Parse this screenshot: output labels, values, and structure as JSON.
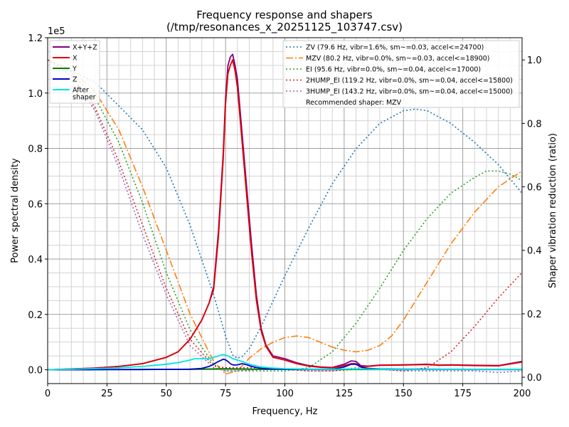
{
  "chart_data": {
    "type": "line",
    "title_line1": "Frequency response and shapers",
    "title_line2": "(/tmp/resonances_x_20251125_103747.csv)",
    "xlabel": "Frequency, Hz",
    "ylabel_left": "Power spectral density",
    "ylabel_right": "Shaper vibration reduction (ratio)",
    "left_scale_label": "1e5",
    "xlim": [
      0,
      200
    ],
    "ylim_left": [
      -0.05,
      1.2
    ],
    "ylim_right": [
      -0.02,
      1.07
    ],
    "x_ticks": [
      0,
      25,
      50,
      75,
      100,
      125,
      150,
      175,
      200
    ],
    "y_ticks_left": [
      0.0,
      0.2,
      0.4,
      0.6,
      0.8,
      1.0,
      1.2
    ],
    "y_tick_labels_left": [
      "0.0",
      "0.2",
      "0.4",
      "0.6",
      "0.8",
      "1.0",
      "1.2"
    ],
    "y_ticks_right": [
      0.0,
      0.2,
      0.4,
      0.6,
      0.8,
      1.0
    ],
    "y_tick_labels_right": [
      "0.0",
      "0.2",
      "0.4",
      "0.6",
      "0.8",
      "1.0"
    ],
    "grid": true,
    "psd_series": [
      {
        "name": "X+Y+Z",
        "color": "#800080",
        "x": [
          0,
          10,
          20,
          30,
          40,
          50,
          55,
          60,
          65,
          68,
          70,
          72,
          74,
          75,
          76,
          77,
          78,
          79,
          80,
          82,
          84,
          86,
          88,
          90,
          92,
          95,
          100,
          105,
          110,
          115,
          120,
          125,
          128,
          130,
          132,
          135,
          140,
          150,
          160,
          165,
          170,
          180,
          190,
          200
        ],
        "y": [
          0,
          0.003,
          0.006,
          0.012,
          0.022,
          0.045,
          0.065,
          0.11,
          0.18,
          0.24,
          0.3,
          0.5,
          0.78,
          0.98,
          1.1,
          1.13,
          1.14,
          1.1,
          1.05,
          0.85,
          0.65,
          0.45,
          0.27,
          0.15,
          0.09,
          0.05,
          0.04,
          0.025,
          0.015,
          0.01,
          0.008,
          0.02,
          0.032,
          0.03,
          0.015,
          0.013,
          0.017,
          0.018,
          0.02,
          0.017,
          0.018,
          0.016,
          0.015,
          0.03
        ]
      },
      {
        "name": "X",
        "color": "#dd0000",
        "x": [
          0,
          10,
          20,
          30,
          40,
          50,
          55,
          60,
          65,
          68,
          70,
          72,
          74,
          75,
          76,
          77,
          78,
          79,
          80,
          82,
          84,
          86,
          88,
          90,
          92,
          95,
          100,
          105,
          110,
          115,
          120,
          125,
          128,
          130,
          132,
          135,
          140,
          150,
          160,
          165,
          170,
          180,
          190,
          200
        ],
        "y": [
          0,
          0.003,
          0.006,
          0.012,
          0.022,
          0.045,
          0.065,
          0.11,
          0.18,
          0.24,
          0.29,
          0.48,
          0.76,
          0.96,
          1.07,
          1.1,
          1.12,
          1.08,
          1.02,
          0.82,
          0.62,
          0.42,
          0.25,
          0.14,
          0.085,
          0.045,
          0.035,
          0.022,
          0.013,
          0.009,
          0.007,
          0.015,
          0.022,
          0.022,
          0.012,
          0.012,
          0.016,
          0.017,
          0.019,
          0.016,
          0.017,
          0.015,
          0.014,
          0.028
        ]
      },
      {
        "name": "Y",
        "color": "#008000",
        "x": [
          0,
          20,
          40,
          60,
          70,
          75,
          80,
          90,
          100,
          120,
          140,
          160,
          180,
          200
        ],
        "y": [
          0,
          0.0005,
          0.001,
          0.002,
          0.003,
          0.004,
          0.003,
          0.002,
          0.002,
          0.001,
          0.001,
          0.001,
          0.001,
          0.001
        ]
      },
      {
        "name": "Z",
        "color": "#0000cc",
        "x": [
          0,
          20,
          40,
          60,
          65,
          68,
          70,
          72,
          74,
          75,
          76,
          77,
          78,
          79,
          80,
          82,
          84,
          86,
          88,
          90,
          95,
          100,
          110,
          120,
          125,
          128,
          130,
          132,
          135,
          140,
          150,
          160,
          180,
          200
        ],
        "y": [
          0,
          0.0005,
          0.001,
          0.002,
          0.005,
          0.012,
          0.02,
          0.03,
          0.038,
          0.036,
          0.03,
          0.022,
          0.018,
          0.017,
          0.018,
          0.022,
          0.018,
          0.012,
          0.008,
          0.005,
          0.003,
          0.002,
          0.002,
          0.002,
          0.01,
          0.02,
          0.02,
          0.01,
          0.005,
          0.003,
          0.002,
          0.002,
          0.001,
          0.001
        ]
      },
      {
        "name": "After\nshaper",
        "color": "#00e5e5",
        "x": [
          0,
          10,
          20,
          30,
          40,
          50,
          55,
          60,
          62,
          65,
          68,
          70,
          72,
          74,
          76,
          78,
          80,
          82,
          85,
          90,
          95,
          100,
          110,
          120,
          130,
          140,
          150,
          160,
          180,
          200
        ],
        "y": [
          0,
          0.002,
          0.004,
          0.007,
          0.012,
          0.02,
          0.026,
          0.035,
          0.04,
          0.04,
          0.04,
          0.045,
          0.05,
          0.055,
          0.05,
          0.04,
          0.035,
          0.03,
          0.02,
          0.01,
          0.006,
          0.004,
          0.002,
          0.002,
          0.003,
          0.002,
          0.001,
          0.001,
          0.001,
          0.001
        ]
      }
    ],
    "shaper_series": [
      {
        "name": "ZV (79.6 Hz, vibr=1.6%, sm~=0.03, accel<=24700)",
        "color": "#1f77b4",
        "style": "dotted",
        "x": [
          0,
          20,
          40,
          50,
          60,
          70,
          75,
          78,
          80,
          82,
          85,
          90,
          100,
          110,
          120,
          130,
          140,
          150,
          155,
          160,
          170,
          180,
          190,
          200
        ],
        "y": [
          1.0,
          0.93,
          0.78,
          0.66,
          0.48,
          0.26,
          0.13,
          0.07,
          0.06,
          0.065,
          0.09,
          0.16,
          0.32,
          0.47,
          0.61,
          0.72,
          0.8,
          0.84,
          0.845,
          0.84,
          0.8,
          0.74,
          0.67,
          0.58
        ]
      },
      {
        "name": "MZV (80.2 Hz, vibr=0.0%, sm~=0.03, accel<=18900)",
        "color": "#ff7f0e",
        "style": "dashdot",
        "x": [
          0,
          10,
          20,
          30,
          40,
          50,
          60,
          70,
          75,
          80,
          85,
          90,
          95,
          100,
          105,
          110,
          115,
          120,
          125,
          130,
          135,
          140,
          145,
          150,
          160,
          170,
          180,
          190,
          200
        ],
        "y": [
          1.0,
          0.97,
          0.9,
          0.78,
          0.6,
          0.4,
          0.2,
          0.05,
          0.01,
          0.02,
          0.06,
          0.09,
          0.11,
          0.125,
          0.13,
          0.125,
          0.11,
          0.095,
          0.085,
          0.08,
          0.085,
          0.1,
          0.13,
          0.18,
          0.3,
          0.42,
          0.52,
          0.6,
          0.65
        ]
      },
      {
        "name": "EI (95.6 Hz, vibr=0.0%, sm~=0.04, accel<=17000)",
        "color": "#2ca02c",
        "style": "dotted",
        "x": [
          0,
          10,
          20,
          30,
          40,
          50,
          60,
          70,
          75,
          80,
          90,
          100,
          110,
          120,
          130,
          140,
          150,
          160,
          170,
          180,
          185,
          190,
          195,
          200
        ],
        "y": [
          1.0,
          0.96,
          0.88,
          0.74,
          0.55,
          0.33,
          0.15,
          0.04,
          0.02,
          0.02,
          0.02,
          0.02,
          0.03,
          0.08,
          0.17,
          0.28,
          0.4,
          0.5,
          0.58,
          0.63,
          0.65,
          0.65,
          0.64,
          0.62
        ]
      },
      {
        "name": "2HUMP_EI (119.2 Hz, vibr=0.0%, sm~=0.04, accel<=15800)",
        "color": "#d62728",
        "style": "dotted",
        "x": [
          0,
          10,
          20,
          30,
          40,
          50,
          60,
          70,
          75,
          80,
          90,
          100,
          110,
          120,
          130,
          140,
          150,
          160,
          170,
          180,
          190,
          200
        ],
        "y": [
          1.0,
          0.95,
          0.85,
          0.68,
          0.48,
          0.28,
          0.12,
          0.035,
          0.03,
          0.03,
          0.03,
          0.025,
          0.02,
          0.02,
          0.025,
          0.025,
          0.02,
          0.03,
          0.08,
          0.16,
          0.25,
          0.33
        ]
      },
      {
        "name": "3HUMP_EI (143.2 Hz, vibr=0.0%, sm~=0.04, accel<=15000)",
        "color": "#9467bd",
        "style": "dotted",
        "x": [
          0,
          10,
          20,
          30,
          40,
          50,
          60,
          70,
          75,
          80,
          90,
          100,
          110,
          120,
          130,
          140,
          150,
          160,
          170,
          180,
          190,
          200
        ],
        "y": [
          1.0,
          0.95,
          0.84,
          0.66,
          0.45,
          0.26,
          0.1,
          0.03,
          0.02,
          0.02,
          0.025,
          0.025,
          0.02,
          0.02,
          0.03,
          0.025,
          0.02,
          0.02,
          0.02,
          0.02,
          0.015,
          0.02
        ]
      }
    ],
    "legend_psd_placement": "top-left",
    "legend_shaper_placement": "top-right",
    "recommended_text": "Recommended shaper: MZV"
  }
}
